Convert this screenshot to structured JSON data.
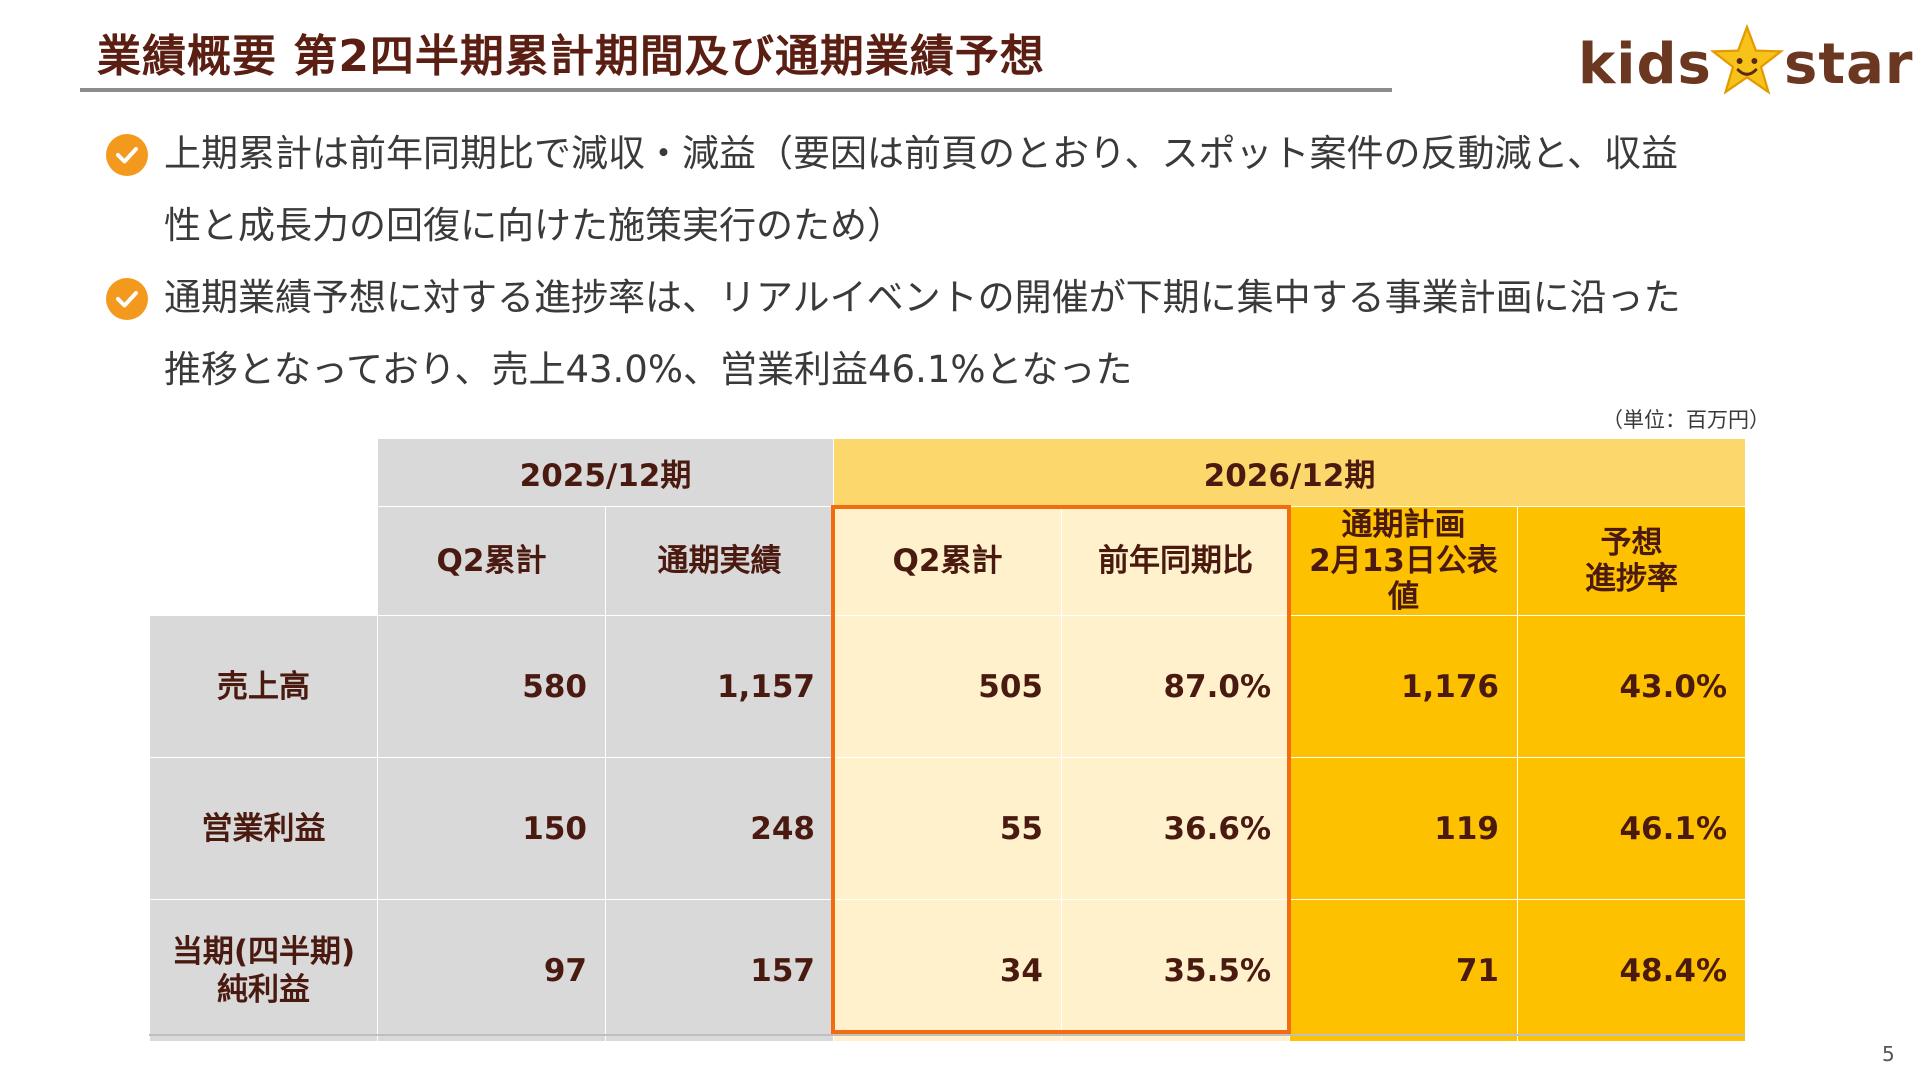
{
  "title": "業績概要 第2四半期累計期間及び通期業績予想",
  "logo": {
    "text_left": "kids",
    "text_right": "star"
  },
  "bullets": [
    {
      "line1": "上期累計は前年同期比で減収・減益（要因は前頁のとおり、スポット案件の反動減と、収益",
      "line2": "性と成長力の回復に向けた施策実行のため）",
      "icon": "check-circle-icon"
    },
    {
      "line1": "通期業績予想に対する進捗率は、リアルイベントの開催が下期に集中する事業計画に沿った",
      "line2": "推移となっており、売上43.0%、営業利益46.1%となった",
      "icon": "check-circle-icon"
    }
  ],
  "unit": "（単位：百万円）",
  "table": {
    "period_2025": "2025/12期",
    "period_2026": "2026/12期",
    "columns": {
      "q2_2025": "Q2累計",
      "full_2025": "通期実績",
      "q2_2026": "Q2累計",
      "yoy": "前年同期比",
      "plan_line1": "通期計画",
      "plan_line2": "2月13日公表値",
      "progress_line1": "予想",
      "progress_line2": "進捗率"
    },
    "rows": [
      {
        "label_line1": "売上高",
        "label_line2": "",
        "q2_2025": "580",
        "full_2025": "1,157",
        "q2_2026": "505",
        "yoy": "87.0%",
        "plan": "1,176",
        "progress": "43.0%"
      },
      {
        "label_line1": "営業利益",
        "label_line2": "",
        "q2_2025": "150",
        "full_2025": "248",
        "q2_2026": "55",
        "yoy": "36.6%",
        "plan": "119",
        "progress": "46.1%"
      },
      {
        "label_line1": "当期(四半期)",
        "label_line2": "純利益",
        "q2_2025": "97",
        "full_2025": "157",
        "q2_2026": "34",
        "yoy": "35.5%",
        "plan": "71",
        "progress": "48.4%"
      }
    ]
  },
  "page_number": "5",
  "colors": {
    "title": "#5a1e12",
    "check": "#f39a1e",
    "highlight_border": "#f26d10",
    "gold": "#fec100",
    "cream": "#fef1cc",
    "grey": "#d9d9d9"
  }
}
